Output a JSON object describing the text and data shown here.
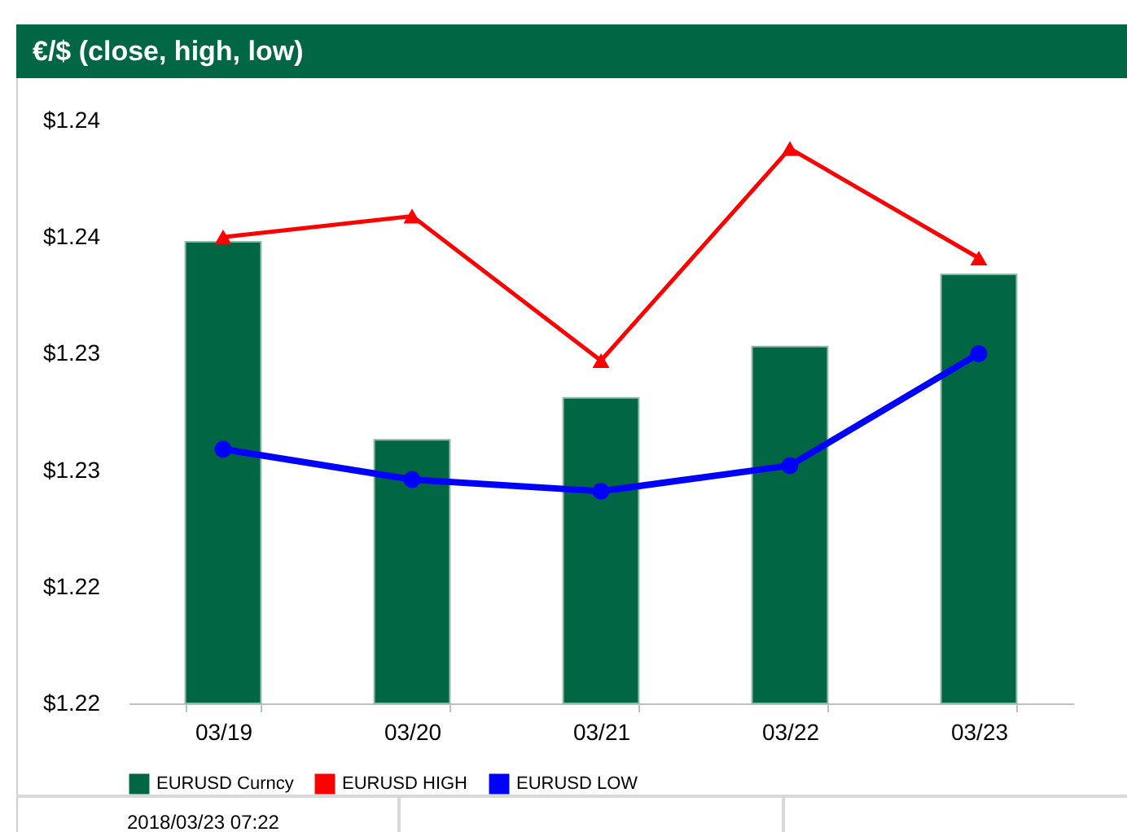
{
  "chart_data": {
    "type": "bar",
    "title": "€/$ (close, high, low)",
    "categories": [
      "03/19",
      "03/20",
      "03/21",
      "03/22",
      "03/23"
    ],
    "series": [
      {
        "name": "EURUSD Curncy",
        "color": "#006643",
        "values": [
          1.2348,
          1.2263,
          1.2281,
          1.2303,
          1.2334
        ]
      },
      {
        "name": "EURUSD HIGH",
        "type": "line",
        "color": "#ff0000",
        "marker": "triangle",
        "values": [
          1.235,
          1.2359,
          1.2297,
          1.2388,
          1.2341
        ]
      },
      {
        "name": "EURUSD LOW",
        "type": "line",
        "color": "#0000ff",
        "marker": "circle",
        "values": [
          1.2259,
          1.2246,
          1.2241,
          1.2252,
          1.23
        ]
      }
    ],
    "ylim": [
      1.215,
      1.24
    ],
    "yticks": [
      {
        "value": 1.215,
        "label": "$1.22"
      },
      {
        "value": 1.22,
        "label": "$1.22"
      },
      {
        "value": 1.225,
        "label": "$1.23"
      },
      {
        "value": 1.23,
        "label": "$1.23"
      },
      {
        "value": 1.235,
        "label": "$1.24"
      },
      {
        "value": 1.24,
        "label": "$1.24"
      }
    ],
    "grid": false,
    "legend": "bottom",
    "annotations": [
      "2018/03/23 07:22"
    ]
  }
}
